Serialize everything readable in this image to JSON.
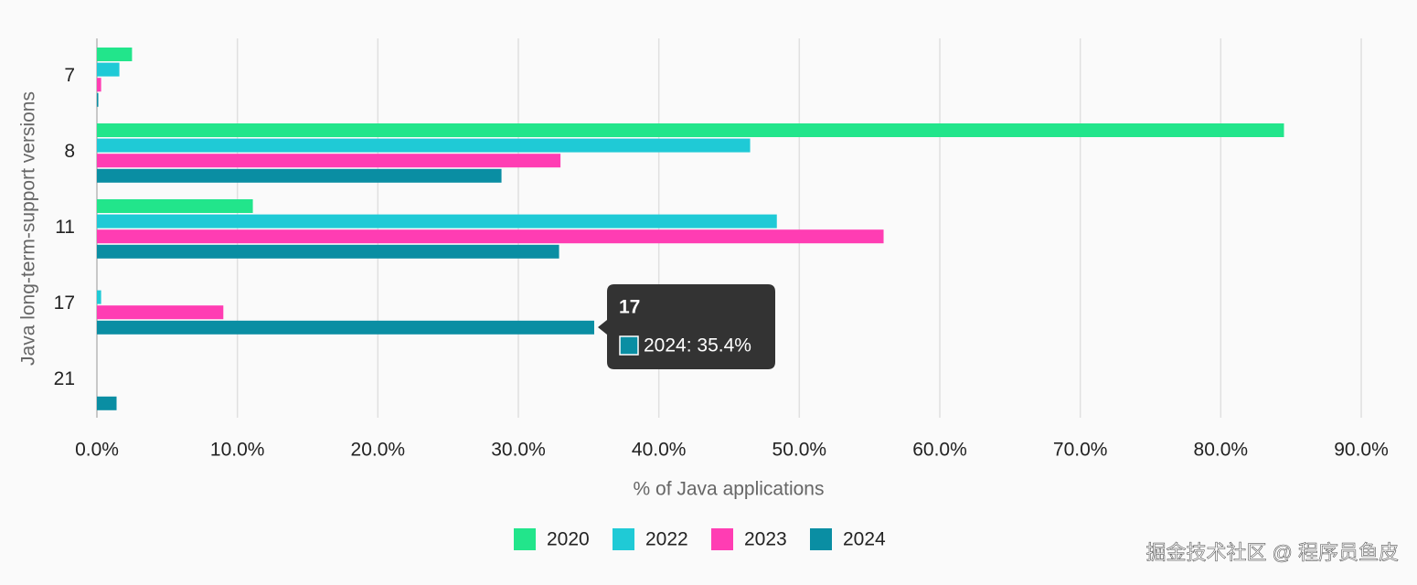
{
  "chart_data": {
    "type": "hbar",
    "categories": [
      "7",
      "8",
      "11",
      "17",
      "21"
    ],
    "series": [
      {
        "name": "2020",
        "color": "#22e58b",
        "values": [
          2.5,
          84.5,
          11.1,
          0,
          0
        ]
      },
      {
        "name": "2022",
        "color": "#1fcad6",
        "values": [
          1.6,
          46.5,
          48.4,
          0.3,
          0
        ]
      },
      {
        "name": "2023",
        "color": "#ff3db3",
        "values": [
          0.3,
          33.0,
          56.0,
          9.0,
          0
        ]
      },
      {
        "name": "2024",
        "color": "#0a8ea3",
        "values": [
          0.1,
          28.8,
          32.9,
          35.4,
          1.4
        ]
      }
    ],
    "xlim": [
      0,
      90
    ],
    "xticks": [
      {
        "value": 0,
        "label": "0.0%"
      },
      {
        "value": 10,
        "label": "10.0%"
      },
      {
        "value": 20,
        "label": "20.0%"
      },
      {
        "value": 30,
        "label": "30.0%"
      },
      {
        "value": 40,
        "label": "40.0%"
      },
      {
        "value": 50,
        "label": "50.0%"
      },
      {
        "value": 60,
        "label": "60.0%"
      },
      {
        "value": 70,
        "label": "70.0%"
      },
      {
        "value": 80,
        "label": "80.0%"
      },
      {
        "value": 90,
        "label": "90.0%"
      }
    ],
    "xlabel": "% of Java applications",
    "ylabel": "Java long-term-support versions",
    "grid": true,
    "legend": "bottom",
    "tooltip": {
      "title": "17",
      "label": "2024: 35.4%"
    }
  },
  "watermark": "掘金技术社区 @ 程序员鱼皮"
}
